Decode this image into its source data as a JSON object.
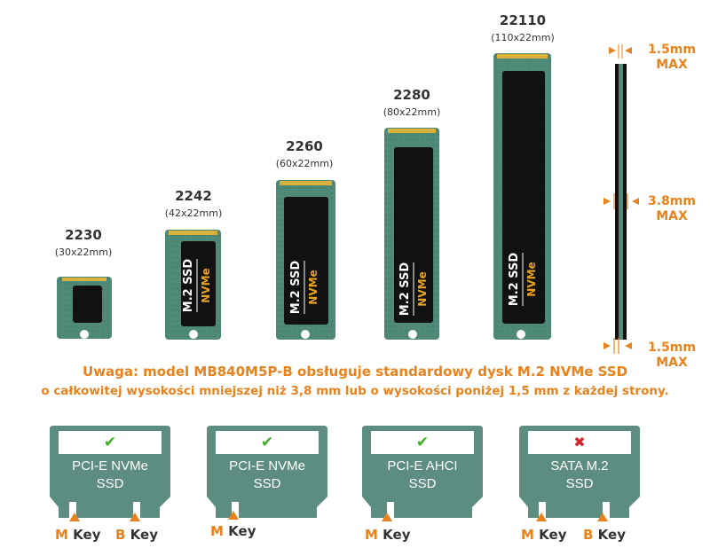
{
  "modules": [
    {
      "name": "2230",
      "dims": "(30x22mm)",
      "label": "",
      "nvme": ""
    },
    {
      "name": "2242",
      "dims": "(42x22mm)",
      "label": "M.2 SSD",
      "nvme": "NVMe"
    },
    {
      "name": "2260",
      "dims": "(60x22mm)",
      "label": "M.2 SSD",
      "nvme": "NVMe"
    },
    {
      "name": "2280",
      "dims": "(80x22mm)",
      "label": "M.2 SSD",
      "nvme": "NVMe"
    },
    {
      "name": "22110",
      "dims": "(110x22mm)",
      "label": "M.2 SSD",
      "nvme": "NVMe"
    }
  ],
  "side_view": {
    "top": {
      "value": "1.5mm",
      "unit": "MAX"
    },
    "middle": {
      "value": "3.8mm",
      "unit": "MAX"
    },
    "bottom": {
      "value": "1.5mm",
      "unit": "MAX"
    }
  },
  "note": {
    "line1": "Uwaga: model MB840M5P-B obsługuje standardowy dysk M.2 NVMe SSD",
    "line2": "o całkowitej wysokości mniejszej niż 3,8 mm lub o wysokości poniżej 1,5 mm z każdej strony."
  },
  "connectors": [
    {
      "line1": "PCI-E NVMe",
      "line2": "SSD",
      "status": "supported",
      "mark": "✔",
      "keys": [
        {
          "letter": "M",
          "word": "Key"
        },
        {
          "letter": "B",
          "word": "Key"
        }
      ]
    },
    {
      "line1": "PCI-E NVMe",
      "line2": "SSD",
      "status": "supported",
      "mark": "✔",
      "keys": [
        {
          "letter": "M",
          "word": "Key"
        }
      ]
    },
    {
      "line1": "PCI-E AHCI",
      "line2": "SSD",
      "status": "supported",
      "mark": "✔",
      "keys": [
        {
          "letter": "M",
          "word": "Key"
        }
      ]
    },
    {
      "line1": "SATA M.2",
      "line2": "SSD",
      "status": "not-supported",
      "mark": "✖",
      "keys": [
        {
          "letter": "M",
          "word": "Key"
        },
        {
          "letter": "B",
          "word": "Key"
        }
      ]
    }
  ],
  "colors": {
    "pcb": "#4f8a78",
    "pcb_dark": "#3b6e60",
    "gold": "#d9b13b",
    "chip": "#111111",
    "accent": "#e8821c",
    "check": "#3fae2a",
    "cross": "#d6262d",
    "card": "#5d8d80"
  }
}
